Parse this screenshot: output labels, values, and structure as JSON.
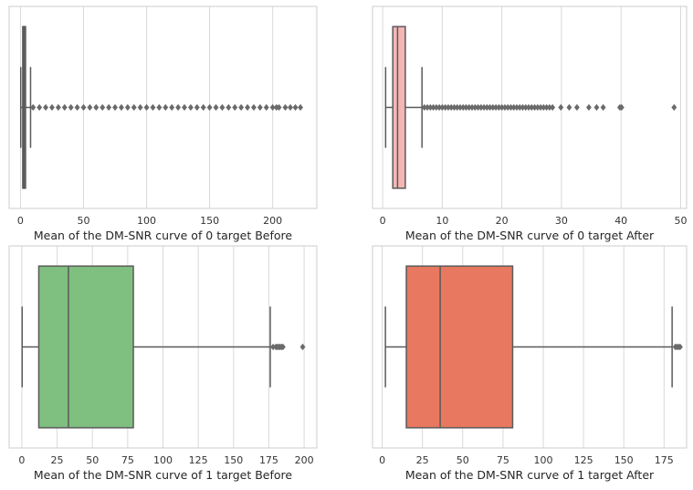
{
  "chart_data": [
    {
      "type": "box",
      "title": "",
      "xlabel": "Mean of the DM-SNR curve of 0 target Before",
      "xlim": [
        -9,
        235
      ],
      "xticks": [
        0,
        50,
        100,
        150,
        200
      ],
      "grid": true,
      "box_color": "#6e6e6e",
      "stats": {
        "whisker_low": 0.2,
        "q1": 1.8,
        "median": 2.7,
        "q3": 4.0,
        "whisker_high": 8.0
      },
      "outliers": [
        10,
        15,
        20,
        25,
        30,
        35,
        40,
        45,
        50,
        55,
        60,
        65,
        70,
        75,
        80,
        85,
        90,
        95,
        100,
        105,
        110,
        115,
        120,
        125,
        130,
        135,
        140,
        145,
        150,
        155,
        160,
        165,
        170,
        175,
        180,
        185,
        190,
        195,
        200,
        203,
        205,
        210,
        214,
        218,
        222
      ]
    },
    {
      "type": "box",
      "title": "",
      "xlabel": "Mean of the DM-SNR curve of 0 target After",
      "xlim": [
        -1.7,
        51
      ],
      "xticks": [
        0,
        10,
        20,
        30,
        40,
        50
      ],
      "grid": true,
      "box_color": "#f4b6b4",
      "stats": {
        "whisker_low": 0.5,
        "q1": 1.7,
        "median": 2.5,
        "q3": 3.8,
        "whisker_high": 6.6
      },
      "outliers": [
        7,
        7.5,
        8,
        8.5,
        9,
        9.5,
        10,
        10.5,
        11,
        11.5,
        12,
        12.5,
        13,
        13.5,
        14,
        14.5,
        15,
        15.5,
        16,
        16.5,
        17,
        17.5,
        18,
        18.5,
        19,
        19.5,
        20,
        20.5,
        21,
        21.5,
        22,
        22.5,
        23,
        23.5,
        24,
        24.5,
        25,
        25.5,
        26,
        26.5,
        27,
        27.5,
        28,
        28.5,
        29.9,
        31.3,
        32.6,
        34.6,
        35.9,
        37.0,
        39.8,
        40.1,
        48.9
      ]
    },
    {
      "type": "box",
      "title": "",
      "xlabel": "Mean of the DM-SNR curve of 1 target Before",
      "xlim": [
        -9,
        209
      ],
      "xticks": [
        0,
        25,
        50,
        75,
        100,
        125,
        150,
        175,
        200
      ],
      "grid": true,
      "box_color": "#7fbf7f",
      "stats": {
        "whisker_low": 0.2,
        "q1": 12,
        "median": 33,
        "q3": 79,
        "whisker_high": 176
      },
      "outliers": [
        178,
        180,
        181,
        182,
        183,
        184,
        185,
        199
      ]
    },
    {
      "type": "box",
      "title": "",
      "xlabel": "Mean of the DM-SNR curve of 1 target After",
      "xlim": [
        -6,
        189
      ],
      "xticks": [
        0,
        25,
        50,
        75,
        100,
        125,
        150,
        175
      ],
      "grid": true,
      "box_color": "#e8785f",
      "stats": {
        "whisker_low": 2,
        "q1": 15,
        "median": 36,
        "q3": 81,
        "whisker_high": 180
      },
      "outliers": [
        182,
        183,
        184,
        185
      ]
    }
  ]
}
